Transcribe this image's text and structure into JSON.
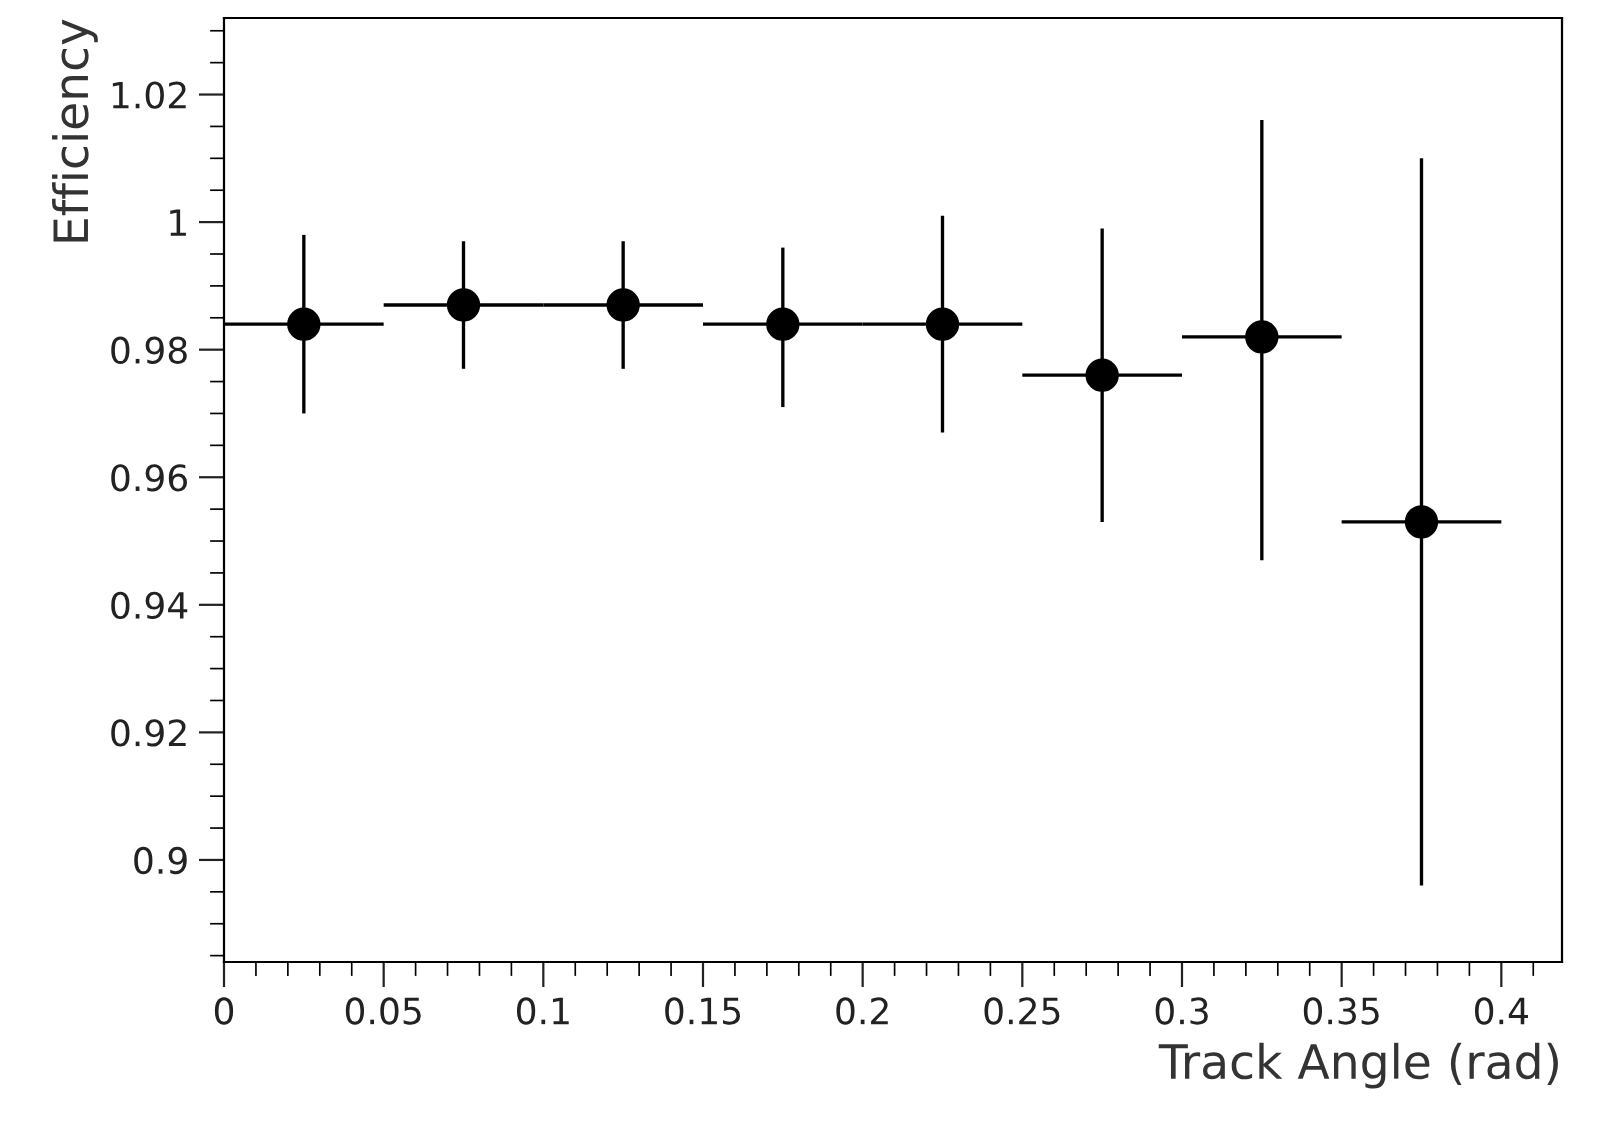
{
  "chart_data": {
    "type": "scatter",
    "xlabel": "Track Angle (rad)",
    "ylabel": "Efficiency",
    "x": [
      0.025,
      0.075,
      0.125,
      0.175,
      0.225,
      0.275,
      0.325,
      0.375
    ],
    "series": [
      {
        "color": "#000000",
        "values": [
          0.984,
          0.987,
          0.987,
          0.984,
          0.984,
          0.976,
          0.982,
          0.953
        ],
        "errors": [
          [
            0.97,
            0.998
          ],
          [
            0.977,
            0.997
          ],
          [
            0.977,
            0.997
          ],
          [
            0.971,
            0.996
          ],
          [
            0.967,
            1.001
          ],
          [
            0.953,
            0.999
          ],
          [
            0.947,
            1.016
          ],
          [
            0.896,
            1.01
          ]
        ],
        "xerrors": [
          0.025,
          0.025,
          0.025,
          0.025,
          0.025,
          0.025,
          0.025,
          0.025
        ]
      }
    ],
    "marker": "circle",
    "xlim": [
      0,
      0.419
    ],
    "ylim": [
      0.884,
      1.032
    ],
    "xticks": [
      0,
      0.05,
      0.1,
      0.15,
      0.2,
      0.25,
      0.3,
      0.35,
      0.4
    ],
    "yticks": [
      0.9,
      0.92,
      0.94,
      0.96,
      0.98,
      1,
      1.02
    ],
    "grid": false
  }
}
